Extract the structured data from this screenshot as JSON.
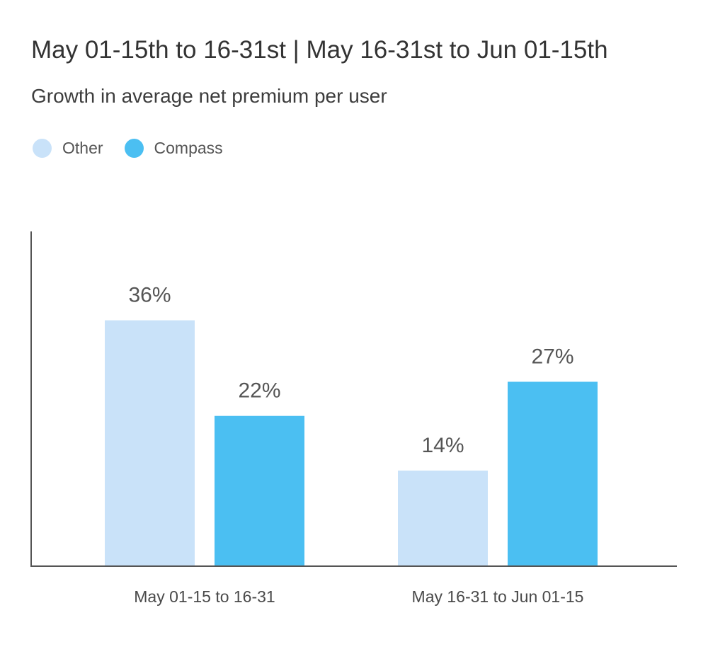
{
  "title": "May 01-15th to 16-31st | May 16-31st to Jun 01-15th",
  "subtitle": "Growth in average net premium per user",
  "legend": [
    {
      "name": "Other",
      "color": "#c9e2f9"
    },
    {
      "name": "Compass",
      "color": "#4bbff2"
    }
  ],
  "chart_data": {
    "type": "bar",
    "title": "May 01-15th to 16-31st | May 16-31st to Jun 01-15th",
    "subtitle": "Growth in average net premium per user",
    "categories": [
      "May 01-15 to 16-31",
      "May 16-31 to Jun 01-15"
    ],
    "series": [
      {
        "name": "Other",
        "values": [
          36,
          14
        ],
        "labels": [
          "36%",
          "14%"
        ],
        "color": "#c9e2f9"
      },
      {
        "name": "Compass",
        "values": [
          22,
          27
        ],
        "labels": [
          "22%",
          "27%"
        ],
        "color": "#4bbff2"
      }
    ],
    "xlabel": "",
    "ylabel": "",
    "ylim": [
      0,
      49
    ],
    "grid": false,
    "legend_position": "top-left"
  }
}
